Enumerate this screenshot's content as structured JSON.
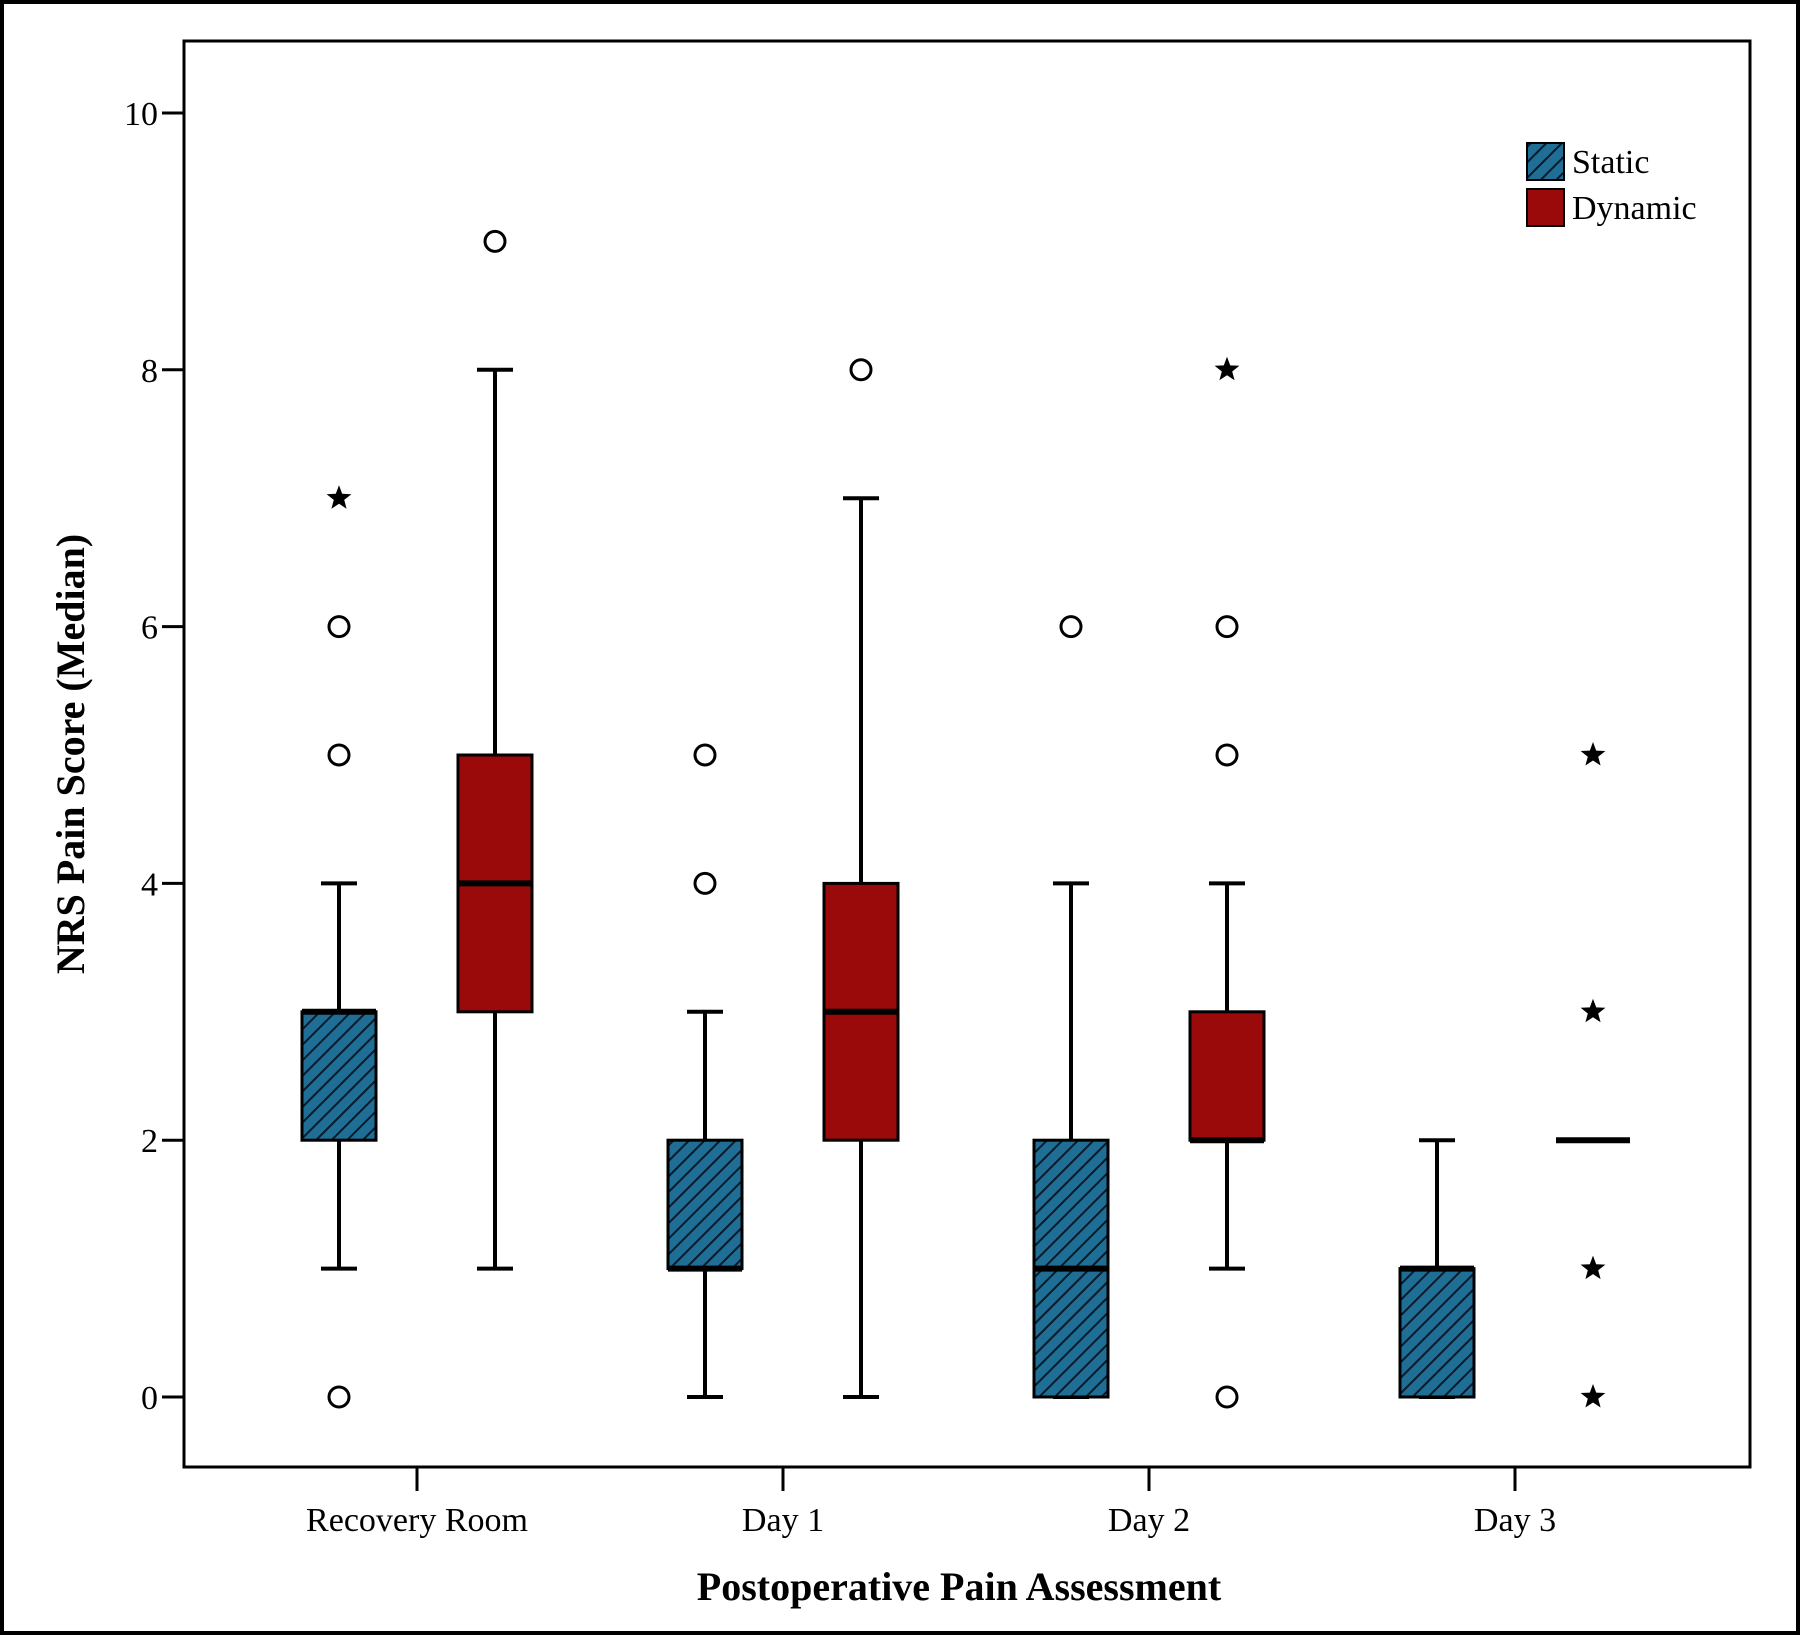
{
  "chart_data": {
    "type": "boxplot",
    "xlabel": "Postoperative Pain Assessment",
    "ylabel": "NRS Pain Score (Median)",
    "ylim": [
      -0.5,
      10.6
    ],
    "yticks": [
      0,
      2,
      4,
      6,
      8,
      10
    ],
    "categories": [
      "Recovery Room",
      "Day 1",
      "Day 2",
      "Day 3"
    ],
    "grid": false,
    "legend_position": "top-right",
    "series": [
      {
        "name": "Static",
        "color": "#1f6e96",
        "pattern": "diagonal-hatch",
        "boxes": [
          {
            "category": "Recovery Room",
            "min": 1,
            "q1": 2,
            "median": 3,
            "q3": 3,
            "max": 4,
            "outliers": [
              {
                "value": 7,
                "marker": "star"
              },
              {
                "value": 6,
                "marker": "circle"
              },
              {
                "value": 5,
                "marker": "circle"
              },
              {
                "value": 0,
                "marker": "circle"
              }
            ]
          },
          {
            "category": "Day 1",
            "min": 0,
            "q1": 1,
            "median": 1,
            "q3": 2,
            "max": 3,
            "outliers": [
              {
                "value": 5,
                "marker": "circle"
              },
              {
                "value": 4,
                "marker": "circle"
              }
            ]
          },
          {
            "category": "Day 2",
            "min": 0,
            "q1": 0,
            "median": 1,
            "q3": 2,
            "max": 4,
            "outliers": [
              {
                "value": 6,
                "marker": "circle"
              }
            ]
          },
          {
            "category": "Day 3",
            "min": 0,
            "q1": 0,
            "median": 1,
            "q3": 1,
            "max": 2,
            "outliers": []
          }
        ]
      },
      {
        "name": "Dynamic",
        "color": "#9b0a0a",
        "pattern": "solid",
        "boxes": [
          {
            "category": "Recovery Room",
            "min": 1,
            "q1": 3,
            "median": 4,
            "q3": 5,
            "max": 8,
            "outliers": [
              {
                "value": 9,
                "marker": "circle"
              }
            ]
          },
          {
            "category": "Day 1",
            "min": 0,
            "q1": 2,
            "median": 3,
            "q3": 4,
            "max": 7,
            "outliers": [
              {
                "value": 8,
                "marker": "circle"
              }
            ]
          },
          {
            "category": "Day 2",
            "min": 1,
            "q1": 2,
            "median": 2,
            "q3": 3,
            "max": 4,
            "outliers": [
              {
                "value": 8,
                "marker": "star"
              },
              {
                "value": 6,
                "marker": "circle"
              },
              {
                "value": 5,
                "marker": "circle"
              },
              {
                "value": 0,
                "marker": "circle"
              }
            ]
          },
          {
            "category": "Day 3",
            "min": 2,
            "q1": 2,
            "median": 2,
            "q3": 2,
            "max": 2,
            "outliers": [
              {
                "value": 5,
                "marker": "star"
              },
              {
                "value": 3,
                "marker": "star"
              },
              {
                "value": 1,
                "marker": "star"
              },
              {
                "value": 0,
                "marker": "star"
              }
            ]
          }
        ]
      }
    ]
  }
}
